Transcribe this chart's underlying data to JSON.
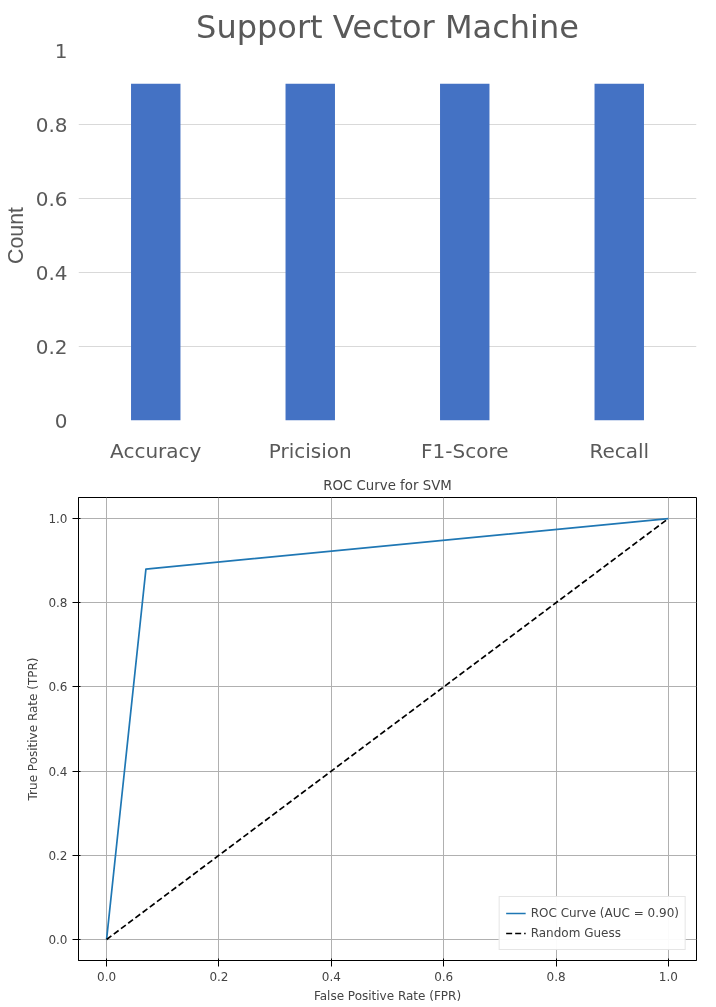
{
  "chart_data": [
    {
      "type": "bar",
      "title": "Support Vector Machine",
      "ylabel": "Count",
      "categories": [
        "Accuracy",
        "Pricision",
        "F1-Score",
        "Recall"
      ],
      "values": [
        0.91,
        0.91,
        0.91,
        0.91
      ],
      "color": "#4472c4",
      "ylim": [
        0,
        1
      ],
      "yticks": [
        0,
        0.2,
        0.4,
        0.6,
        0.8,
        1
      ],
      "grid": "y"
    },
    {
      "type": "line",
      "title": "ROC Curve for SVM",
      "xlabel": "False Positive Rate (FPR)",
      "ylabel": "True Positive Rate (TPR)",
      "xlim": [
        -0.05,
        1.05
      ],
      "ylim": [
        -0.05,
        1.05
      ],
      "xticks": [
        {
          "value": 0,
          "label": "0.0"
        },
        0.2,
        0.4,
        0.6,
        0.8,
        {
          "value": 1,
          "label": "1.0"
        }
      ],
      "yticks": [
        {
          "value": 0,
          "label": "0.0"
        },
        0.2,
        0.4,
        0.6,
        0.8,
        {
          "value": 1,
          "label": "1.0"
        }
      ],
      "grid": true,
      "legend": "bottom right",
      "series": [
        {
          "name": "ROC Curve (AUC = 0.90)",
          "color": "#1f77b4",
          "x": [
            0,
            0.07,
            1
          ],
          "values": [
            0,
            0.88,
            1
          ],
          "line_style": "solid"
        },
        {
          "name": "Random Guess",
          "color": "#000000",
          "x": [
            0,
            1
          ],
          "values": [
            0,
            1
          ],
          "line_style": "dashed"
        }
      ]
    }
  ]
}
